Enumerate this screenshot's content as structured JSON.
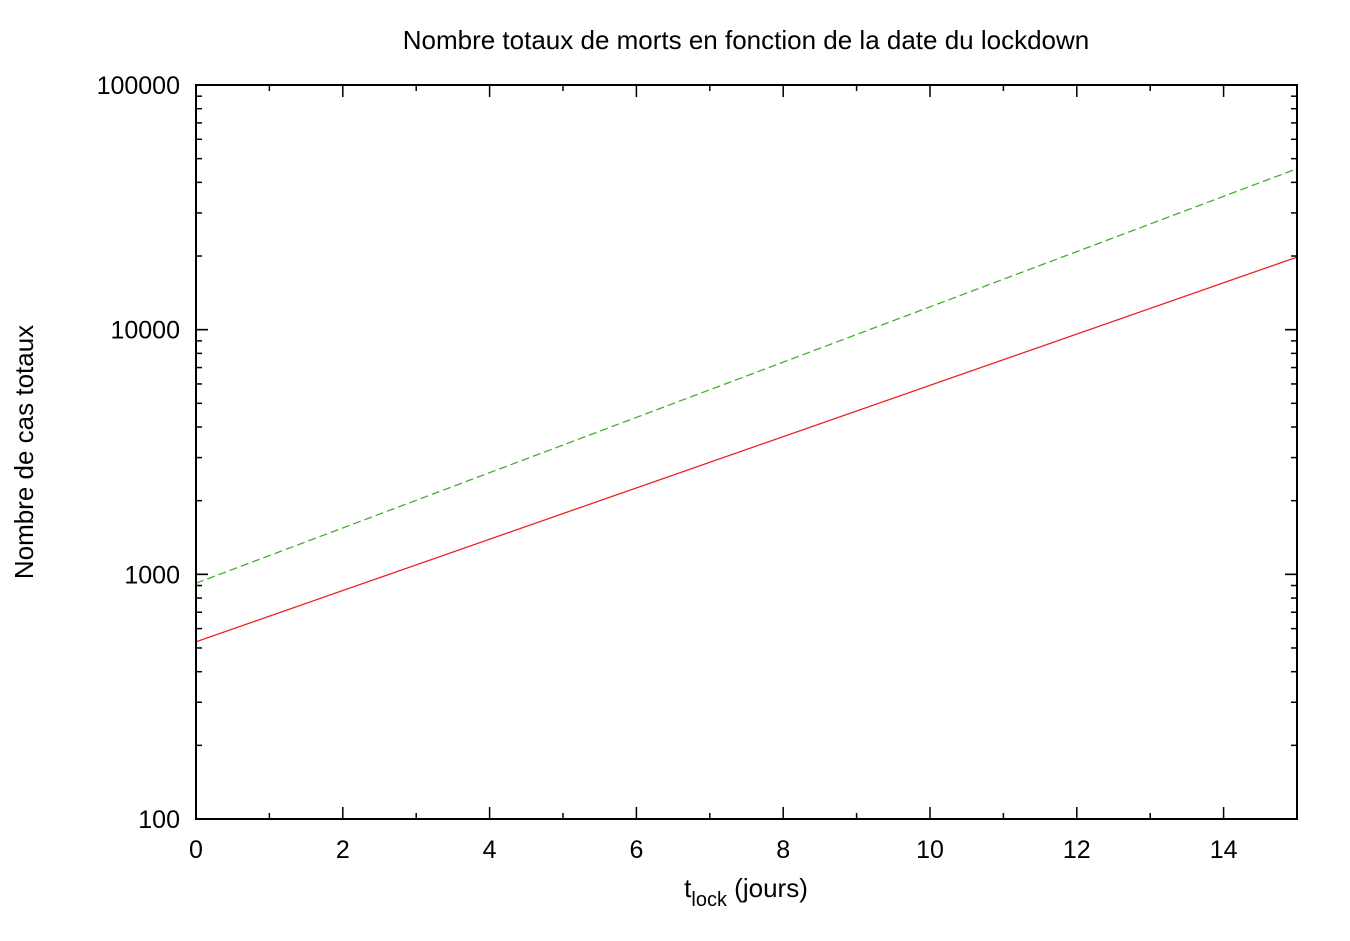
{
  "chart_data": {
    "type": "line",
    "title": "Nombre totaux de morts en fonction de la date du lockdown",
    "xlabel": {
      "base": "t",
      "subscript": "lock",
      "suffix": " (jours)"
    },
    "ylabel": "Nombre de cas totaux",
    "xlim": [
      0,
      15
    ],
    "ylim": [
      100,
      100000
    ],
    "yscale": "log",
    "xticks": [
      0,
      2,
      4,
      6,
      8,
      10,
      12,
      14
    ],
    "xtick_labels": [
      "0",
      "2",
      "4",
      "6",
      "8",
      "10",
      "12",
      "14"
    ],
    "yticks": [
      100,
      1000,
      10000,
      100000
    ],
    "ytick_labels": [
      "100",
      "1000",
      "10000",
      "100000"
    ],
    "grid": false,
    "legend": "none",
    "series": [
      {
        "x": [
          0,
          15
        ],
        "y": [
          530,
          19800
        ],
        "color": "#ee2222",
        "style": "solid"
      },
      {
        "x": [
          0,
          15
        ],
        "y": [
          920,
          45500
        ],
        "color": "#44b030",
        "style": "dashed"
      }
    ]
  }
}
